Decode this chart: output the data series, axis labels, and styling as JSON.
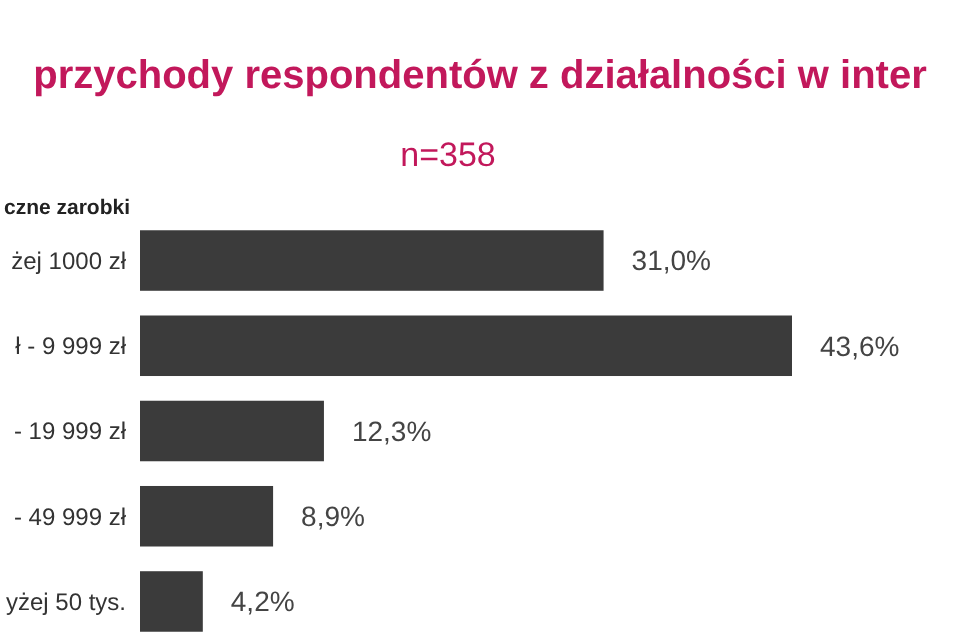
{
  "chart_data": {
    "type": "bar",
    "orientation": "horizontal",
    "title": "przychody respondentów z działalności w inter",
    "subtitle": "n=358",
    "ylabel": "czne zarobki",
    "categories": [
      "żej 1000 zł",
      "ł - 9 999 zł",
      "- 19 999 zł",
      "- 49 999 zł",
      "yżej 50 tys."
    ],
    "values": [
      31.0,
      43.6,
      12.3,
      8.9,
      4.2
    ],
    "value_labels": [
      "31,0%",
      "43,6%",
      "12,3%",
      "8,9%",
      "4,2%"
    ],
    "color": "#3b3b3b"
  }
}
